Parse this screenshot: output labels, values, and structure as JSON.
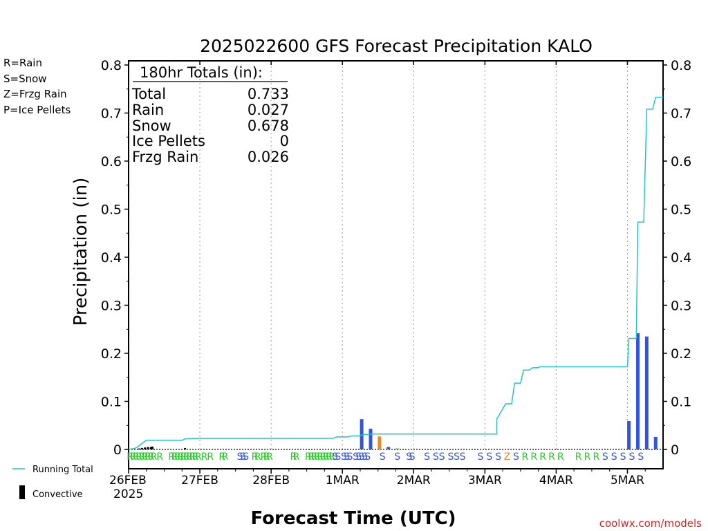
{
  "chart_data": {
    "type": "bar",
    "title": "2025022600 GFS Forecast Precipitation KALO",
    "xlabel": "Forecast Time (UTC)",
    "ylabel": "Precipitation (in)",
    "ylim": [
      0,
      0.8
    ],
    "yticks": [
      "0",
      "0.1",
      "0.2",
      "0.3",
      "0.4",
      "0.5",
      "0.6",
      "0.7",
      "0.8"
    ],
    "xlim_hours": [
      0,
      180
    ],
    "xticks": [
      {
        "label": "26FEB",
        "sub": "2025",
        "hour": 0
      },
      {
        "label": "27FEB",
        "sub": "",
        "hour": 24
      },
      {
        "label": "28FEB",
        "sub": "",
        "hour": 48
      },
      {
        "label": "1MAR",
        "sub": "",
        "hour": 72
      },
      {
        "label": "2MAR",
        "sub": "",
        "hour": 96
      },
      {
        "label": "3MAR",
        "sub": "",
        "hour": 120
      },
      {
        "label": "4MAR",
        "sub": "",
        "hour": 144
      },
      {
        "label": "5MAR",
        "sub": "",
        "hour": 168
      }
    ],
    "legend": [
      {
        "text": "R=Rain",
        "color": "#22cc22"
      },
      {
        "text": "S=Snow",
        "color": "#3355dd"
      },
      {
        "text": "Z=Frzg Rain",
        "color": "#ee8822"
      },
      {
        "text": "P=Ice Pellets",
        "color": "#ee2288"
      }
    ],
    "series_legend": {
      "running_total": "Running Total",
      "convective": "Convective"
    },
    "colors": {
      "rain": "#22cc22",
      "snow": "#3355dd",
      "frzg": "#ee8822",
      "pellets": "#ee2288",
      "total": "#22c5c5",
      "convective": "#000000"
    },
    "totals": {
      "heading": "180hr Totals (in):",
      "rows": [
        {
          "label": "Total",
          "value": "0.733"
        },
        {
          "label": "Rain",
          "value": "0.027"
        },
        {
          "label": "Snow",
          "value": "0.678"
        },
        {
          "label": "Ice Pellets",
          "value": "0"
        },
        {
          "label": "Frzg Rain",
          "value": "0.026"
        }
      ]
    },
    "bars": [
      {
        "hour": 78.5,
        "value": 0.063,
        "type": "snow"
      },
      {
        "hour": 81.5,
        "value": 0.043,
        "type": "snow"
      },
      {
        "hour": 84.5,
        "value": 0.027,
        "type": "frzg"
      },
      {
        "hour": 87.5,
        "value": 0.005,
        "type": "snow"
      },
      {
        "hour": 90.5,
        "value": 0.002,
        "type": "rain"
      },
      {
        "hour": 168.5,
        "value": 0.059,
        "type": "snow"
      },
      {
        "hour": 171.5,
        "value": 0.242,
        "type": "snow"
      },
      {
        "hour": 174.5,
        "value": 0.235,
        "type": "snow"
      },
      {
        "hour": 177.5,
        "value": 0.026,
        "type": "snow"
      }
    ],
    "convective_bars": [
      {
        "hour": 3.5,
        "value": 0.002
      },
      {
        "hour": 4.5,
        "value": 0.003
      },
      {
        "hour": 5.5,
        "value": 0.004
      },
      {
        "hour": 6.5,
        "value": 0.005
      },
      {
        "hour": 7.5,
        "value": 0.005
      },
      {
        "hour": 8.0,
        "value": 0.006
      },
      {
        "hour": 19.0,
        "value": 0.003
      }
    ],
    "running_total": [
      [
        0,
        0
      ],
      [
        2,
        0.002
      ],
      [
        3,
        0.005
      ],
      [
        4,
        0.01
      ],
      [
        5,
        0.015
      ],
      [
        6,
        0.019
      ],
      [
        18,
        0.019
      ],
      [
        19,
        0.022
      ],
      [
        24,
        0.023
      ],
      [
        69,
        0.023
      ],
      [
        70,
        0.026
      ],
      [
        74,
        0.026
      ],
      [
        75,
        0.028
      ],
      [
        78,
        0.028
      ],
      [
        79,
        0.031
      ],
      [
        81,
        0.031
      ],
      [
        82,
        0.032
      ],
      [
        120,
        0.032
      ],
      [
        124,
        0.032
      ],
      [
        124,
        0.063
      ],
      [
        127,
        0.095
      ],
      [
        129,
        0.095
      ],
      [
        130,
        0.138
      ],
      [
        132,
        0.138
      ],
      [
        133,
        0.165
      ],
      [
        135,
        0.165
      ],
      [
        136,
        0.17
      ],
      [
        138,
        0.17
      ],
      [
        138.5,
        0.172
      ],
      [
        167,
        0.172
      ],
      [
        168,
        0.172
      ],
      [
        168.5,
        0.231
      ],
      [
        171,
        0.231
      ],
      [
        171.5,
        0.473
      ],
      [
        173.5,
        0.473
      ],
      [
        174.5,
        0.708
      ],
      [
        176.5,
        0.708
      ],
      [
        177.5,
        0.733
      ],
      [
        180,
        0.733
      ]
    ],
    "ptype_symbols": [
      {
        "hour": 0.5,
        "sym": "R"
      },
      {
        "hour": 1.5,
        "sym": "R"
      },
      {
        "hour": 2.5,
        "sym": "R"
      },
      {
        "hour": 3.5,
        "sym": "R"
      },
      {
        "hour": 4.5,
        "sym": "R"
      },
      {
        "hour": 5.5,
        "sym": "R"
      },
      {
        "hour": 6.5,
        "sym": "R"
      },
      {
        "hour": 7.5,
        "sym": "R"
      },
      {
        "hour": 8.5,
        "sym": "R"
      },
      {
        "hour": 10.5,
        "sym": "R"
      },
      {
        "hour": 14.5,
        "sym": "R"
      },
      {
        "hour": 15.5,
        "sym": "R"
      },
      {
        "hour": 16.5,
        "sym": "R"
      },
      {
        "hour": 17.5,
        "sym": "R"
      },
      {
        "hour": 18.5,
        "sym": "R"
      },
      {
        "hour": 19.5,
        "sym": "R"
      },
      {
        "hour": 20.5,
        "sym": "R"
      },
      {
        "hour": 21.5,
        "sym": "R"
      },
      {
        "hour": 22.5,
        "sym": "R"
      },
      {
        "hour": 23.5,
        "sym": "R"
      },
      {
        "hour": 25.5,
        "sym": "R"
      },
      {
        "hour": 27.5,
        "sym": "R"
      },
      {
        "hour": 31.5,
        "sym": "R"
      },
      {
        "hour": 32.5,
        "sym": "R"
      },
      {
        "hour": 37.5,
        "sym": "S"
      },
      {
        "hour": 38.5,
        "sym": "S"
      },
      {
        "hour": 39.5,
        "sym": "S"
      },
      {
        "hour": 42.5,
        "sym": "R"
      },
      {
        "hour": 43.5,
        "sym": "R"
      },
      {
        "hour": 45.5,
        "sym": "R"
      },
      {
        "hour": 46.5,
        "sym": "R"
      },
      {
        "hour": 47.5,
        "sym": "R"
      },
      {
        "hour": 55.5,
        "sym": "R"
      },
      {
        "hour": 56.5,
        "sym": "R"
      },
      {
        "hour": 60.5,
        "sym": "R"
      },
      {
        "hour": 61.5,
        "sym": "R"
      },
      {
        "hour": 62.5,
        "sym": "R"
      },
      {
        "hour": 63.5,
        "sym": "R"
      },
      {
        "hour": 64.5,
        "sym": "R"
      },
      {
        "hour": 65.5,
        "sym": "R"
      },
      {
        "hour": 66.5,
        "sym": "R"
      },
      {
        "hour": 67.5,
        "sym": "R"
      },
      {
        "hour": 68.5,
        "sym": "R"
      },
      {
        "hour": 69.5,
        "sym": "S"
      },
      {
        "hour": 70.5,
        "sym": "S"
      },
      {
        "hour": 72.5,
        "sym": "S"
      },
      {
        "hour": 73.5,
        "sym": "S"
      },
      {
        "hour": 74.5,
        "sym": "S"
      },
      {
        "hour": 76.5,
        "sym": "S"
      },
      {
        "hour": 77.5,
        "sym": "S"
      },
      {
        "hour": 78.5,
        "sym": "S"
      },
      {
        "hour": 79.5,
        "sym": "S"
      },
      {
        "hour": 80.5,
        "sym": "S"
      },
      {
        "hour": 85.5,
        "sym": "S"
      },
      {
        "hour": 90.5,
        "sym": "S"
      },
      {
        "hour": 94.5,
        "sym": "S"
      },
      {
        "hour": 95.5,
        "sym": "S"
      },
      {
        "hour": 100.5,
        "sym": "S"
      },
      {
        "hour": 103.5,
        "sym": "S"
      },
      {
        "hour": 105.5,
        "sym": "S"
      },
      {
        "hour": 108.5,
        "sym": "S"
      },
      {
        "hour": 110.5,
        "sym": "S"
      },
      {
        "hour": 112.5,
        "sym": "S"
      },
      {
        "hour": 118.5,
        "sym": "S"
      },
      {
        "hour": 121.5,
        "sym": "S"
      },
      {
        "hour": 124.5,
        "sym": "S"
      },
      {
        "hour": 127.5,
        "sym": "Z"
      },
      {
        "hour": 130.5,
        "sym": "S"
      },
      {
        "hour": 133.5,
        "sym": "R"
      },
      {
        "hour": 136.5,
        "sym": "R"
      },
      {
        "hour": 139.5,
        "sym": "R"
      },
      {
        "hour": 142.5,
        "sym": "R"
      },
      {
        "hour": 145.5,
        "sym": "R"
      },
      {
        "hour": 151.5,
        "sym": "R"
      },
      {
        "hour": 154.5,
        "sym": "R"
      },
      {
        "hour": 157.5,
        "sym": "R"
      },
      {
        "hour": 160.5,
        "sym": "S"
      },
      {
        "hour": 163.5,
        "sym": "S"
      },
      {
        "hour": 166.5,
        "sym": "S"
      },
      {
        "hour": 169.5,
        "sym": "S"
      },
      {
        "hour": 172.5,
        "sym": "S"
      }
    ]
  },
  "watermark": "coolwx.com/models"
}
